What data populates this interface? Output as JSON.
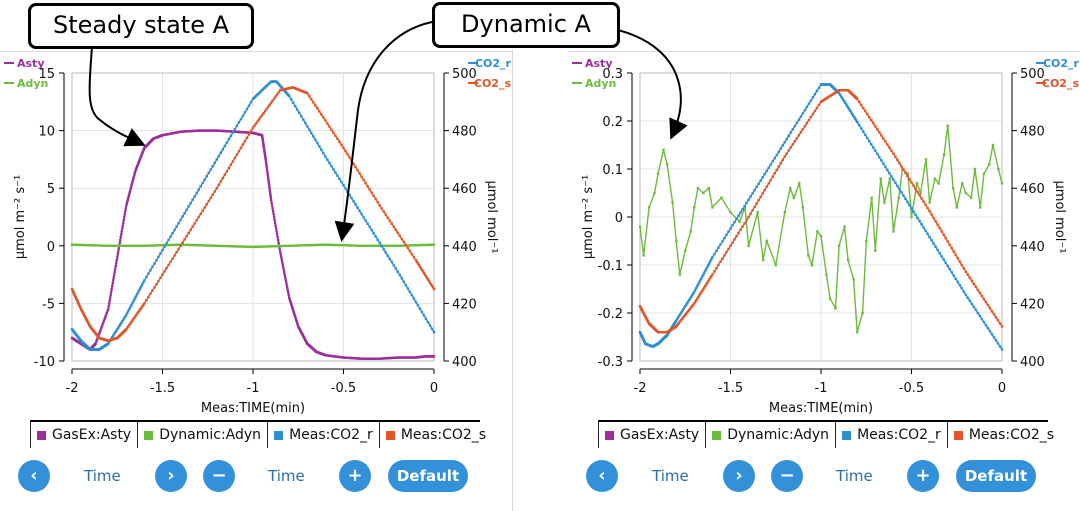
{
  "annotations": {
    "steady": "Steady state A",
    "dynamic": "Dynamic A"
  },
  "controls": {
    "time_label": "Time",
    "default_label": "Default",
    "prev_icon": "chevron-left-icon",
    "next_icon": "chevron-right-icon",
    "minus_icon": "minus-icon",
    "plus_icon": "plus-icon"
  },
  "legend": [
    {
      "label": "GasEx:Asty",
      "color": "#9b2f9b"
    },
    {
      "label": "Dynamic:Adyn",
      "color": "#6dbb3a"
    },
    {
      "label": "Meas:CO2_r",
      "color": "#2d8fd0"
    },
    {
      "label": "Meas:CO2_s",
      "color": "#e0562a"
    }
  ],
  "chart_data": [
    {
      "type": "line",
      "xlabel": "Meas:TIME(min)",
      "ylabel_left": "µmol m⁻² s⁻¹",
      "ylabel_right": "µmol mol⁻¹",
      "xlim": [
        -2,
        0
      ],
      "ylim_left": [
        -10,
        15
      ],
      "ylim_right": [
        400,
        500
      ],
      "x_ticks": [
        "-2",
        "-1.5",
        "-1",
        "-0.5",
        "0"
      ],
      "y_ticks_left": [
        "-10",
        "-5",
        "0",
        "5",
        "10",
        "15"
      ],
      "y_ticks_right": [
        "400",
        "420",
        "440",
        "460",
        "480",
        "500"
      ],
      "left_axis_series": [
        "Asty",
        "Adyn"
      ],
      "right_axis_series": [
        "CO2_r",
        "CO2_s"
      ],
      "series": [
        {
          "name": "Asty",
          "axis": "left",
          "color": "#9b2f9b",
          "x": [
            -2.0,
            -1.95,
            -1.9,
            -1.87,
            -1.8,
            -1.75,
            -1.7,
            -1.65,
            -1.6,
            -1.55,
            -1.5,
            -1.4,
            -1.3,
            -1.2,
            -1.1,
            -1.0,
            -0.95,
            -0.93,
            -0.9,
            -0.85,
            -0.8,
            -0.75,
            -0.7,
            -0.65,
            -0.6,
            -0.5,
            -0.4,
            -0.3,
            -0.2,
            -0.1,
            -0.05,
            0.0
          ],
          "y": [
            -8.0,
            -8.5,
            -9.0,
            -8.5,
            -5.5,
            -1.0,
            3.5,
            6.5,
            8.5,
            9.3,
            9.6,
            9.9,
            10.0,
            10.0,
            9.9,
            9.8,
            9.6,
            7.5,
            4.0,
            -0.5,
            -4.5,
            -7.0,
            -8.5,
            -9.2,
            -9.5,
            -9.7,
            -9.8,
            -9.8,
            -9.7,
            -9.7,
            -9.6,
            -9.6
          ]
        },
        {
          "name": "Adyn",
          "axis": "left",
          "color": "#6dbb3a",
          "x": [
            -2.0,
            -1.8,
            -1.6,
            -1.4,
            -1.2,
            -1.0,
            -0.8,
            -0.6,
            -0.4,
            -0.2,
            0.0
          ],
          "y": [
            0.1,
            0.0,
            0.0,
            0.1,
            0.0,
            -0.1,
            0.0,
            0.1,
            0.0,
            0.0,
            0.1
          ]
        },
        {
          "name": "CO2_r",
          "axis": "right",
          "color": "#2d8fd0",
          "x": [
            -2.0,
            -1.95,
            -1.9,
            -1.85,
            -1.8,
            -1.7,
            -1.6,
            -1.4,
            -1.2,
            -1.0,
            -0.9,
            -0.87,
            -0.8,
            -0.6,
            -0.4,
            -0.2,
            0.0
          ],
          "y": [
            411,
            407,
            404,
            404,
            406,
            416,
            428,
            449,
            470,
            491,
            497,
            497,
            492,
            471,
            451,
            431,
            410
          ]
        },
        {
          "name": "CO2_s",
          "axis": "right",
          "color": "#e0562a",
          "x": [
            -2.0,
            -1.95,
            -1.9,
            -1.85,
            -1.8,
            -1.75,
            -1.7,
            -1.6,
            -1.4,
            -1.2,
            -1.0,
            -0.85,
            -0.78,
            -0.7,
            -0.5,
            -0.3,
            -0.1,
            0.0
          ],
          "y": [
            425,
            418,
            412,
            408,
            407,
            408,
            411,
            420,
            440,
            460,
            481,
            494,
            495,
            493,
            474,
            454,
            435,
            425
          ]
        }
      ]
    },
    {
      "type": "line",
      "xlabel": "Meas:TIME(min)",
      "ylabel_left": "µmol m⁻² s⁻¹",
      "ylabel_right": "µmol mol⁻¹",
      "xlim": [
        -2,
        0
      ],
      "ylim_left": [
        -0.3,
        0.3
      ],
      "ylim_right": [
        400,
        500
      ],
      "x_ticks": [
        "-2",
        "-1.5",
        "-1",
        "-0.5",
        "0"
      ],
      "y_ticks_left": [
        "-0.3",
        "-0.2",
        "-0.1",
        "0",
        "0.1",
        "0.2",
        "0.3"
      ],
      "y_ticks_right": [
        "400",
        "420",
        "440",
        "460",
        "480",
        "500"
      ],
      "left_axis_series": [
        "Asty",
        "Adyn"
      ],
      "right_axis_series": [
        "CO2_r",
        "CO2_s"
      ],
      "series": [
        {
          "name": "Adyn",
          "axis": "left",
          "color": "#6dbb3a",
          "x": [
            -2.0,
            -1.98,
            -1.95,
            -1.92,
            -1.9,
            -1.87,
            -1.85,
            -1.82,
            -1.8,
            -1.78,
            -1.75,
            -1.72,
            -1.7,
            -1.68,
            -1.65,
            -1.62,
            -1.6,
            -1.55,
            -1.5,
            -1.45,
            -1.42,
            -1.4,
            -1.35,
            -1.32,
            -1.3,
            -1.25,
            -1.2,
            -1.17,
            -1.15,
            -1.12,
            -1.1,
            -1.07,
            -1.05,
            -1.02,
            -1.0,
            -0.97,
            -0.95,
            -0.92,
            -0.9,
            -0.87,
            -0.85,
            -0.82,
            -0.8,
            -0.77,
            -0.75,
            -0.72,
            -0.7,
            -0.67,
            -0.65,
            -0.62,
            -0.6,
            -0.57,
            -0.55,
            -0.52,
            -0.5,
            -0.47,
            -0.45,
            -0.42,
            -0.4,
            -0.37,
            -0.35,
            -0.32,
            -0.3,
            -0.27,
            -0.25,
            -0.22,
            -0.2,
            -0.17,
            -0.15,
            -0.12,
            -0.1,
            -0.07,
            -0.05,
            -0.02,
            0.0
          ],
          "y": [
            -0.02,
            -0.08,
            0.02,
            0.05,
            0.09,
            0.14,
            0.11,
            0.03,
            -0.05,
            -0.12,
            -0.07,
            -0.03,
            0.02,
            0.06,
            0.05,
            0.06,
            0.02,
            0.04,
            0.01,
            -0.01,
            0.02,
            -0.06,
            0.01,
            -0.09,
            -0.05,
            -0.1,
            0.01,
            0.06,
            0.04,
            0.07,
            0.02,
            -0.08,
            -0.1,
            -0.03,
            -0.04,
            -0.12,
            -0.17,
            -0.19,
            -0.06,
            -0.02,
            -0.09,
            -0.13,
            -0.24,
            -0.2,
            -0.05,
            0.04,
            -0.07,
            0.08,
            0.03,
            0.08,
            -0.03,
            0.04,
            0.1,
            0.09,
            0.0,
            0.07,
            0.05,
            0.12,
            0.03,
            0.08,
            0.07,
            0.13,
            0.19,
            0.06,
            0.02,
            0.07,
            0.05,
            0.04,
            0.1,
            0.02,
            0.09,
            0.11,
            0.15,
            0.1,
            0.07
          ]
        },
        {
          "name": "CO2_r",
          "axis": "right",
          "color": "#2d8fd0",
          "x": [
            -2.0,
            -1.97,
            -1.93,
            -1.9,
            -1.85,
            -1.8,
            -1.7,
            -1.6,
            -1.4,
            -1.2,
            -1.0,
            -0.95,
            -0.9,
            -0.8,
            -0.6,
            -0.4,
            -0.2,
            0.0
          ],
          "y": [
            410,
            406,
            405,
            406,
            409,
            414,
            424,
            436,
            456,
            476,
            496,
            496,
            493,
            483,
            463,
            443,
            423,
            404
          ]
        },
        {
          "name": "CO2_s",
          "axis": "right",
          "color": "#e0562a",
          "x": [
            -2.0,
            -1.95,
            -1.9,
            -1.85,
            -1.8,
            -1.7,
            -1.6,
            -1.4,
            -1.2,
            -1.0,
            -0.9,
            -0.85,
            -0.8,
            -0.6,
            -0.4,
            -0.2,
            0.0
          ],
          "y": [
            419,
            413,
            410,
            410,
            412,
            420,
            430,
            450,
            471,
            490,
            494,
            494,
            491,
            472,
            452,
            431,
            412
          ]
        }
      ]
    }
  ]
}
